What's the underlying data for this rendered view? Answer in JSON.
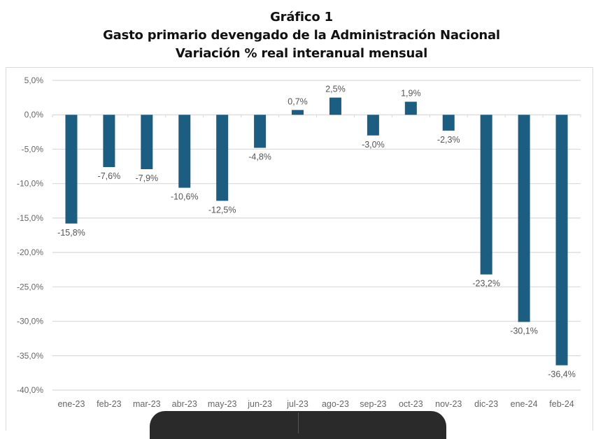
{
  "titles": {
    "line1": "Gráfico 1",
    "line2": "Gasto primario devengado de la Administración Nacional",
    "line3": "Variación % real interanual mensual"
  },
  "colors": {
    "bar": "#1b5e82",
    "grid": "#d9d9d9",
    "text": "#666666"
  },
  "chart_data": {
    "type": "bar",
    "title": "Gráfico 1 — Gasto primario devengado de la Administración Nacional — Variación % real interanual mensual",
    "xlabel": "",
    "ylabel": "",
    "ylim": [
      -40,
      5
    ],
    "yticks": [
      5,
      0,
      -5,
      -10,
      -15,
      -20,
      -25,
      -30,
      -35,
      -40
    ],
    "ytick_labels": [
      "5,0%",
      "0,0%",
      "-5,0%",
      "-10,0%",
      "-15,0%",
      "-20,0%",
      "-25,0%",
      "-30,0%",
      "-35,0%",
      "-40,0%"
    ],
    "grid": true,
    "legend": "none",
    "categories": [
      "ene-23",
      "feb-23",
      "mar-23",
      "abr-23",
      "may-23",
      "jun-23",
      "jul-23",
      "ago-23",
      "sep-23",
      "oct-23",
      "nov-23",
      "dic-23",
      "ene-24",
      "feb-24"
    ],
    "values": [
      -15.8,
      -7.6,
      -7.9,
      -10.6,
      -12.5,
      -4.8,
      0.7,
      2.5,
      -3.0,
      1.9,
      -2.3,
      -23.2,
      -30.1,
      -36.4
    ],
    "data_labels": [
      "-15,8%",
      "-7,6%",
      "-7,9%",
      "-10,6%",
      "-12,5%",
      "-4,8%",
      "0,7%",
      "2,5%",
      "-3,0%",
      "1,9%",
      "-2,3%",
      "-23,2%",
      "-30,1%",
      "-36,4%"
    ]
  }
}
